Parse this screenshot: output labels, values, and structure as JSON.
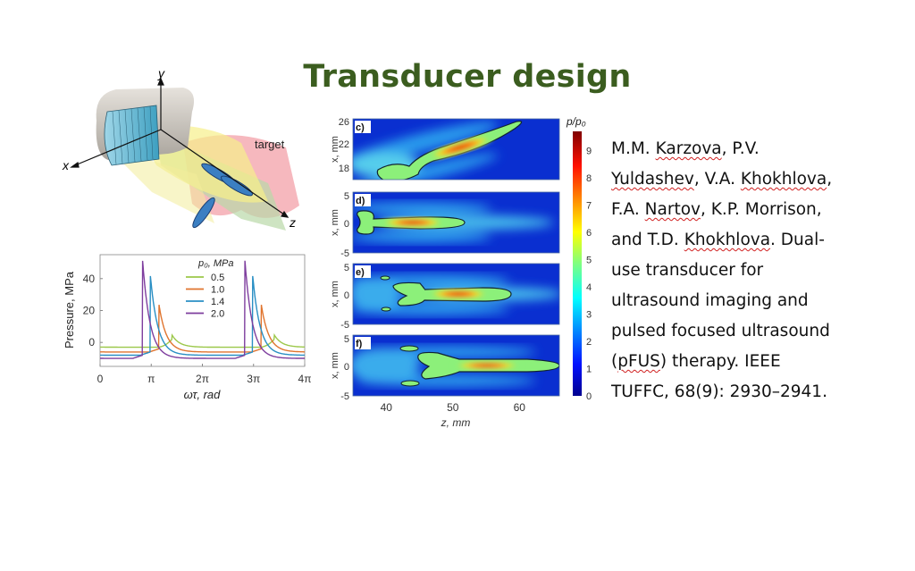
{
  "slide": {
    "title": "Transducer design"
  },
  "illustration": {
    "axis_labels": {
      "x": "x",
      "y": "y",
      "z": "z"
    },
    "target_label": "target"
  },
  "reference": {
    "lines": [
      [
        "M.M. ",
        "Karzova",
        ", P.V."
      ],
      [
        "",
        "Yuldashev",
        ", V.A. ",
        "Khokhlova",
        ","
      ],
      [
        "F.A. ",
        "Nartov",
        ", K.P. Morrison,"
      ],
      [
        "and T.D. ",
        "Khokhlova",
        ". Dual-"
      ],
      [
        "use transducer for"
      ],
      [
        "ultrasound imaging and"
      ],
      [
        "pulsed focused ultrasound"
      ],
      [
        "(",
        "pFUS",
        ") therapy. IEEE"
      ],
      [
        "TUFFC, 68(9): 2930–2941."
      ]
    ]
  },
  "chart_data": [
    {
      "type": "line",
      "xlabel": "ωτ, rad",
      "ylabel": "Pressure, MPa",
      "xlim": [
        0,
        12.566
      ],
      "ylim": [
        -15,
        55
      ],
      "x_ticks": [
        "0",
        "π",
        "2π",
        "3π",
        "4π"
      ],
      "y_ticks": [
        "0",
        "20",
        "40"
      ],
      "y_tick_values": [
        0,
        20,
        40
      ],
      "legend_title": "p₀, MPa",
      "legend_placement": "top-center",
      "grid": false,
      "series": [
        {
          "name": "0.5",
          "color": "#9cc84a",
          "peak_MPa": 5,
          "peak_phase_pi": 1.4,
          "min_MPa": -3
        },
        {
          "name": "1.0",
          "color": "#e0742e",
          "peak_MPa": 24,
          "peak_phase_pi": 1.15,
          "min_MPa": -6
        },
        {
          "name": "1.4",
          "color": "#2a8fc4",
          "peak_MPa": 43,
          "peak_phase_pi": 0.98,
          "min_MPa": -8
        },
        {
          "name": "2.0",
          "color": "#7e3e9e",
          "peak_MPa": 52,
          "peak_phase_pi": 0.83,
          "min_MPa": -10
        }
      ]
    },
    {
      "type": "heatmap",
      "xlabel": "z, mm",
      "x_ticks": [
        "40",
        "50",
        "60"
      ],
      "xlim": [
        35,
        66
      ],
      "colorbar_label": "p/p₀",
      "colorbar_ticks": [
        "0",
        "1",
        "2",
        "3",
        "4",
        "5",
        "6",
        "7",
        "8",
        "9"
      ],
      "colorbar_range": [
        0,
        9.7
      ],
      "panels": [
        {
          "label": "c)",
          "ylabel": "x, mm",
          "y_ticks": [
            "26",
            "22",
            "18"
          ],
          "focus_z_mm": 50,
          "peak": 9
        },
        {
          "label": "d)",
          "ylabel": "x, mm",
          "y_ticks": [
            "5",
            "0",
            "-5"
          ],
          "focus_z_mm": 43.5,
          "peak": 9.5
        },
        {
          "label": "e)",
          "ylabel": "x, mm",
          "y_ticks": [
            "5",
            "0",
            "-5"
          ],
          "focus_z_mm": 49,
          "peak": 9
        },
        {
          "label": "f)",
          "ylabel": "x, mm",
          "y_ticks": [
            "5",
            "0",
            "-5"
          ],
          "focus_z_mm": 55,
          "peak": 8
        }
      ]
    }
  ]
}
